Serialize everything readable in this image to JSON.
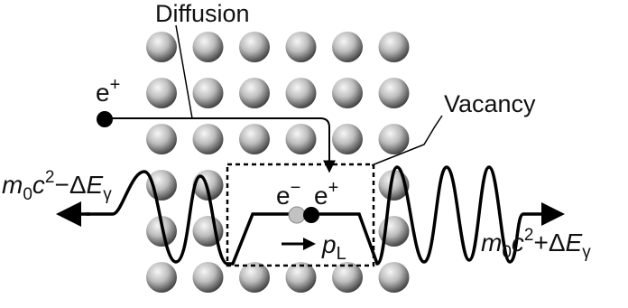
{
  "labels": {
    "diffusion": "Diffusion",
    "vacancy": "Vacancy",
    "positron": "e",
    "positron_sup": "+",
    "electron": "e",
    "electron_sup": "−",
    "pair_positron": "e",
    "pair_positron_sup": "+",
    "momentum": "p",
    "momentum_sub": "L",
    "left_energy": {
      "m": "m",
      "sub0": "0",
      "c": "c",
      "sup2": "2",
      "minus": "−Δ",
      "E": "E",
      "gamma": "γ"
    },
    "right_energy": {
      "m": "m",
      "sub0": "0",
      "c": "c",
      "sup2": "2",
      "plus": "+Δ",
      "E": "E",
      "gamma": "γ"
    }
  },
  "lattice": {
    "rows": 6,
    "cols": 6,
    "vacancy_sites": [
      [
        3,
        2
      ],
      [
        3,
        3
      ],
      [
        3,
        4
      ],
      [
        4,
        2
      ],
      [
        4,
        3
      ],
      [
        4,
        4
      ]
    ]
  },
  "colors": {
    "atom_light": "#f2f2f2",
    "atom_dark": "#3a3a3a",
    "positron": "#000000",
    "electron": "#bdbdbd",
    "line": "#000000"
  }
}
